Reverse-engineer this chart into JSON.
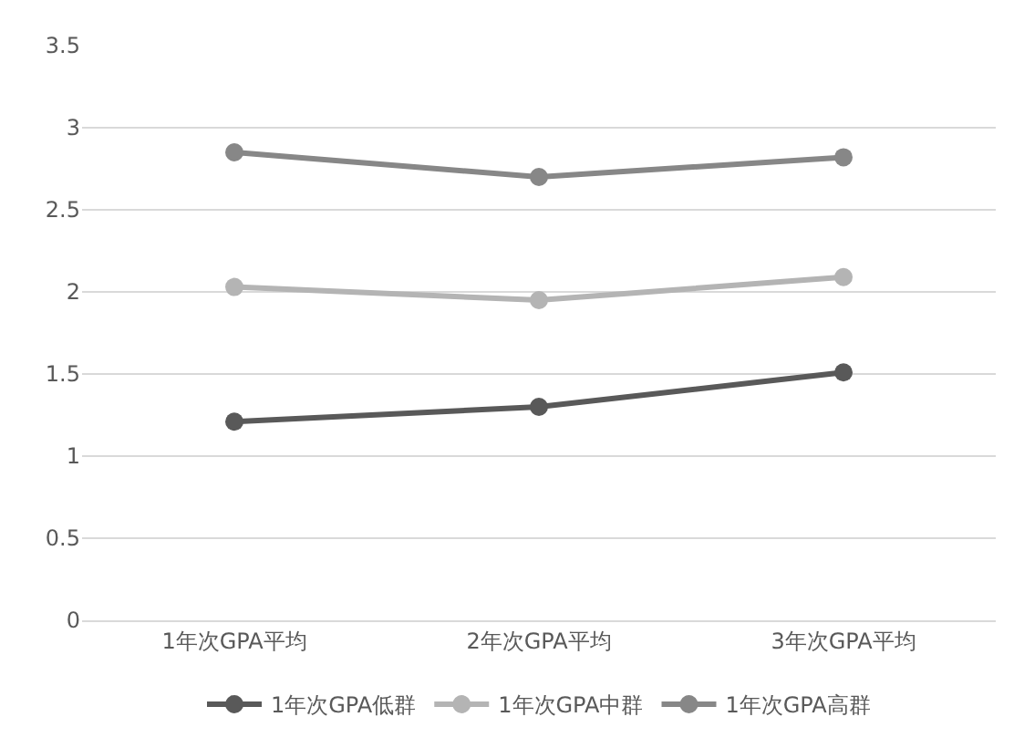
{
  "chart_data": {
    "type": "line",
    "categories": [
      "1年次GPA平均",
      "2年次GPA平均",
      "3年次GPA平均"
    ],
    "series": [
      {
        "name": "1年次GPA低群",
        "color": "#595959",
        "values": [
          1.21,
          1.3,
          1.51
        ]
      },
      {
        "name": "1年次GPA中群",
        "color": "#b4b4b4",
        "values": [
          2.03,
          1.95,
          2.09
        ]
      },
      {
        "name": "1年次GPA高群",
        "color": "#878787",
        "values": [
          2.85,
          2.7,
          2.82
        ]
      }
    ],
    "ylim": [
      0,
      3.5
    ],
    "yticks": [
      0,
      0.5,
      1,
      1.5,
      2,
      2.5,
      3,
      3.5
    ],
    "grid": "y",
    "legend": "bottom",
    "marker": "circle",
    "line_style": "solid"
  }
}
